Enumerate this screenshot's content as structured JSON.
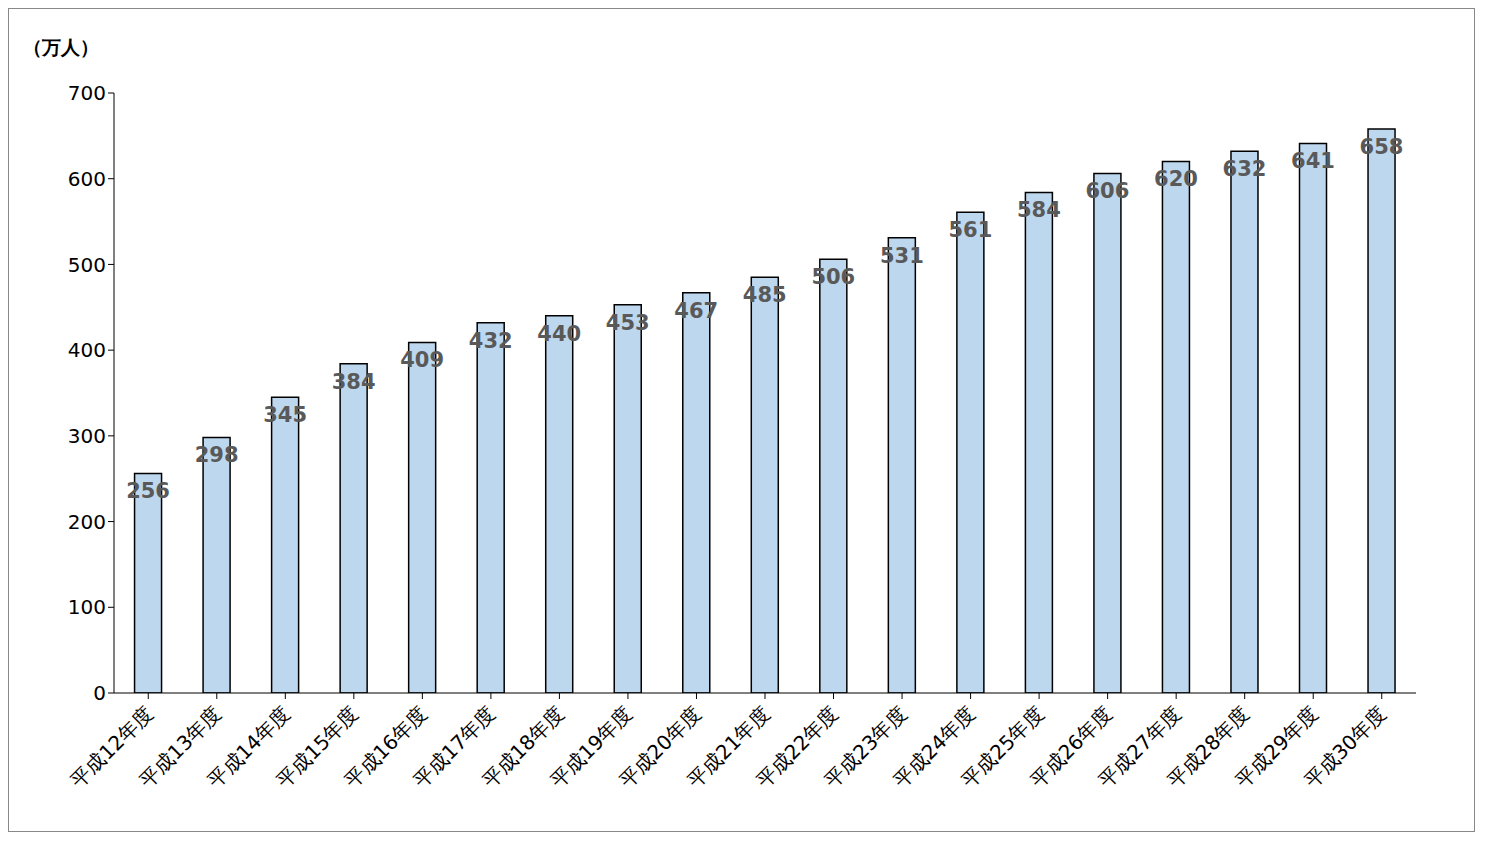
{
  "chart_data": {
    "type": "bar",
    "ylabel": "（万人）",
    "categories": [
      "平成12年度",
      "平成13年度",
      "平成14年度",
      "平成15年度",
      "平成16年度",
      "平成17年度",
      "平成18年度",
      "平成19年度",
      "平成20年度",
      "平成21年度",
      "平成22年度",
      "平成23年度",
      "平成24年度",
      "平成25年度",
      "平成26年度",
      "平成27年度",
      "平成28年度",
      "平成29年度",
      "平成30年度"
    ],
    "values": [
      256,
      298,
      345,
      384,
      409,
      432,
      440,
      453,
      467,
      485,
      506,
      531,
      561,
      584,
      606,
      620,
      632,
      641,
      658
    ],
    "color": "#bdd7ee",
    "ylim": [
      0,
      700
    ],
    "yticks": [
      0,
      100,
      200,
      300,
      400,
      500,
      600,
      700
    ],
    "grid": false,
    "data_labels": true
  }
}
